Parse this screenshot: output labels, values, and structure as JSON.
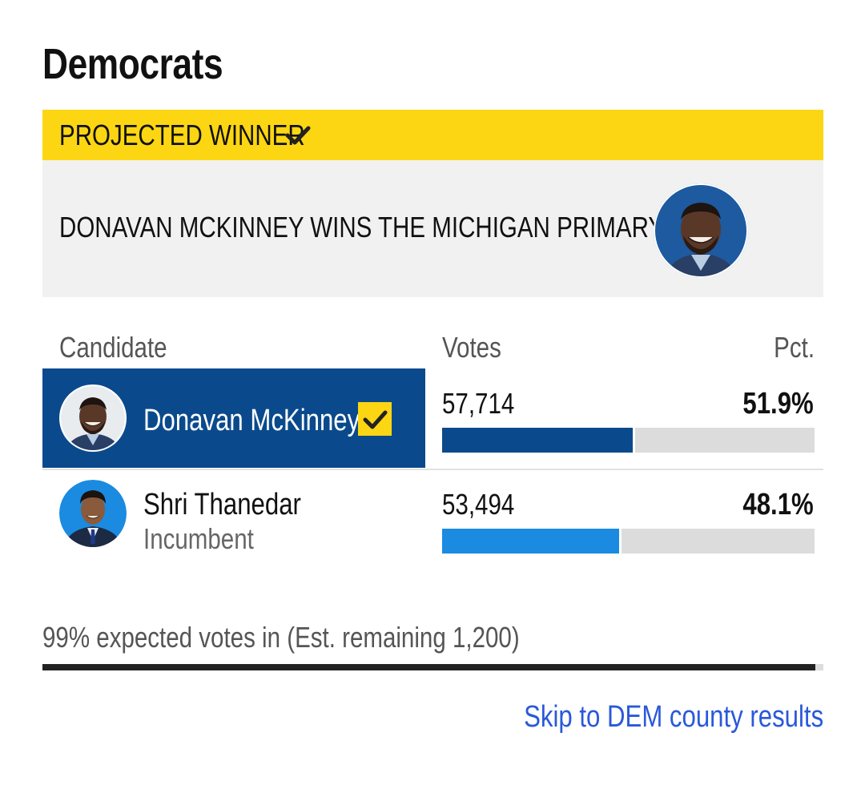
{
  "party_title": "Democrats",
  "banner": {
    "label": "PROJECTED WINNER",
    "headline": "DONAVAN MCKINNEY WINS THE MICHIGAN PRIMARY"
  },
  "table": {
    "headers": {
      "candidate": "Candidate",
      "votes": "Votes",
      "pct": "Pct."
    },
    "rows": [
      {
        "name": "Donavan McKinney",
        "note": "",
        "votes": "57,714",
        "pct": "51.9%",
        "share": 0.519,
        "winner": true,
        "bar_color": "#0a4a8c"
      },
      {
        "name": "Shri Thanedar",
        "note": "Incumbent",
        "votes": "53,494",
        "pct": "48.1%",
        "share": 0.481,
        "winner": false,
        "bar_color": "#1a8be0"
      }
    ]
  },
  "expected_votes": "99% expected votes in (Est. remaining 1,200)",
  "expected_fraction": 0.99,
  "link": "Skip to DEM county results",
  "colors": {
    "banner_yellow": "#fcd612",
    "winner_blue": "#0a4a8c",
    "runner_blue": "#1a8be0",
    "link_blue": "#2a59d9"
  },
  "icons": [
    "check-icon",
    "candidate-photo-avatar"
  ]
}
